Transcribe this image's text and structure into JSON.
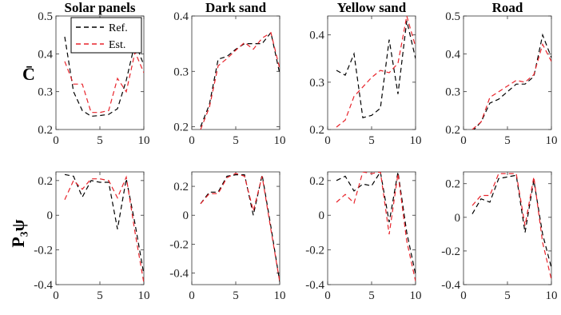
{
  "figure": {
    "row_labels": [
      "C̄",
      "P₃ψ"
    ],
    "legend": {
      "placement": "top-left of first panel",
      "entries": [
        "Ref.",
        "Est."
      ]
    },
    "colors": {
      "ref": "#000000",
      "est": "#e8242b"
    }
  },
  "chart_data": [
    {
      "type": "line",
      "title": "Solar panels",
      "xlim": [
        0,
        10
      ],
      "ylim": [
        0.2,
        0.5
      ],
      "xticks": [
        "0",
        "5",
        "10"
      ],
      "yticks": [
        "0.2",
        "0.3",
        "0.4",
        "0.5"
      ],
      "x": [
        1,
        2,
        3,
        4,
        5,
        6,
        7,
        8,
        9,
        10
      ],
      "series": [
        {
          "name": "Ref.",
          "values": [
            0.445,
            0.3,
            0.25,
            0.235,
            0.237,
            0.24,
            0.255,
            0.33,
            0.43,
            0.37
          ]
        },
        {
          "name": "Est.",
          "values": [
            0.38,
            0.32,
            0.32,
            0.245,
            0.245,
            0.25,
            0.335,
            0.3,
            0.405,
            0.35
          ]
        }
      ]
    },
    {
      "type": "line",
      "title": "Dark sand",
      "xlim": [
        0,
        10
      ],
      "ylim": [
        0.195,
        0.4
      ],
      "xticks": [
        "0",
        "5",
        "10"
      ],
      "yticks": [
        "0.2",
        "0.3",
        "0.4"
      ],
      "x": [
        1,
        2,
        3,
        4,
        5,
        6,
        7,
        8,
        9,
        10
      ],
      "series": [
        {
          "name": "Ref.",
          "values": [
            0.2,
            0.24,
            0.322,
            0.327,
            0.34,
            0.35,
            0.35,
            0.35,
            0.37,
            0.296
          ]
        },
        {
          "name": "Est.",
          "values": [
            0.195,
            0.235,
            0.31,
            0.323,
            0.338,
            0.352,
            0.34,
            0.36,
            0.37,
            0.305
          ]
        }
      ]
    },
    {
      "type": "line",
      "title": "Yellow sand",
      "xlim": [
        0,
        10
      ],
      "ylim": [
        0.2,
        0.44
      ],
      "xticks": [
        "0",
        "5",
        "10"
      ],
      "yticks": [
        "0.2",
        "0.3",
        "0.4"
      ],
      "x": [
        1,
        2,
        3,
        4,
        5,
        6,
        7,
        8,
        9,
        10
      ],
      "series": [
        {
          "name": "Ref.",
          "values": [
            0.325,
            0.315,
            0.36,
            0.225,
            0.23,
            0.245,
            0.39,
            0.275,
            0.43,
            0.35
          ]
        },
        {
          "name": "Est.",
          "values": [
            0.205,
            0.22,
            0.27,
            0.29,
            0.31,
            0.325,
            0.32,
            0.34,
            0.44,
            0.375
          ]
        }
      ]
    },
    {
      "type": "line",
      "title": "Road",
      "xlim": [
        0,
        10
      ],
      "ylim": [
        0.2,
        0.5
      ],
      "xticks": [
        "0",
        "5",
        "10"
      ],
      "yticks": [
        "0.2",
        "0.3",
        "0.4",
        "0.5"
      ],
      "x": [
        1,
        2,
        3,
        4,
        5,
        6,
        7,
        8,
        9,
        10
      ],
      "series": [
        {
          "name": "Ref.",
          "values": [
            0.195,
            0.22,
            0.27,
            0.28,
            0.3,
            0.32,
            0.32,
            0.34,
            0.45,
            0.39
          ]
        },
        {
          "name": "Est.",
          "values": [
            0.2,
            0.22,
            0.285,
            0.3,
            0.315,
            0.33,
            0.325,
            0.345,
            0.425,
            0.38
          ]
        }
      ]
    },
    {
      "type": "line",
      "title": "",
      "xlim": [
        0,
        10
      ],
      "ylim": [
        -0.4,
        0.25
      ],
      "xticks": [
        "0",
        "5",
        "10"
      ],
      "yticks": [
        "-0.4",
        "-0.2",
        "0",
        "0.2"
      ],
      "x": [
        1,
        2,
        3,
        4,
        5,
        6,
        7,
        8,
        9,
        10
      ],
      "series": [
        {
          "name": "Ref.",
          "values": [
            0.235,
            0.225,
            0.105,
            0.2,
            0.19,
            0.19,
            -0.08,
            0.21,
            -0.05,
            -0.34
          ]
        },
        {
          "name": "Est.",
          "values": [
            0.09,
            0.2,
            0.15,
            0.21,
            0.21,
            0.2,
            0.1,
            0.22,
            -0.1,
            -0.39
          ]
        }
      ]
    },
    {
      "type": "line",
      "title": "",
      "xlim": [
        0,
        10
      ],
      "ylim": [
        -0.48,
        0.3
      ],
      "xticks": [
        "0",
        "5",
        "10"
      ],
      "yticks": [
        "-0.4",
        "-0.2",
        "0",
        "0.2"
      ],
      "x": [
        1,
        2,
        3,
        4,
        5,
        6,
        7,
        8,
        9,
        10
      ],
      "series": [
        {
          "name": "Ref.",
          "values": [
            0.08,
            0.16,
            0.16,
            0.27,
            0.28,
            0.28,
            0.0,
            0.28,
            -0.08,
            -0.46
          ]
        },
        {
          "name": "Est.",
          "values": [
            0.08,
            0.15,
            0.15,
            0.26,
            0.29,
            0.27,
            0.03,
            0.27,
            -0.1,
            -0.46
          ]
        }
      ]
    },
    {
      "type": "line",
      "title": "",
      "xlim": [
        0,
        10
      ],
      "ylim": [
        -0.4,
        0.25
      ],
      "xticks": [
        "0",
        "5",
        "10"
      ],
      "yticks": [
        "-0.4",
        "-0.2",
        "0",
        "0.2"
      ],
      "x": [
        1,
        2,
        3,
        4,
        5,
        6,
        7,
        8,
        9,
        10
      ],
      "series": [
        {
          "name": "Ref.",
          "values": [
            0.2,
            0.225,
            0.14,
            0.18,
            0.17,
            0.25,
            -0.04,
            0.25,
            -0.1,
            -0.34
          ]
        },
        {
          "name": "Est.",
          "values": [
            0.075,
            0.12,
            0.07,
            0.25,
            0.24,
            0.25,
            -0.11,
            0.24,
            -0.15,
            -0.38
          ]
        }
      ]
    },
    {
      "type": "line",
      "title": "",
      "xlim": [
        0,
        10
      ],
      "ylim": [
        -0.4,
        0.27
      ],
      "xticks": [
        "0",
        "5",
        "10"
      ],
      "yticks": [
        "-0.4",
        "-0.2",
        "0",
        "0.2"
      ],
      "x": [
        1,
        2,
        3,
        4,
        5,
        6,
        7,
        8,
        9,
        10
      ],
      "series": [
        {
          "name": "Ref.",
          "values": [
            0.02,
            0.11,
            0.09,
            0.23,
            0.24,
            0.25,
            -0.09,
            0.22,
            -0.1,
            -0.3
          ]
        },
        {
          "name": "Est.",
          "values": [
            0.07,
            0.13,
            0.13,
            0.26,
            0.26,
            0.26,
            -0.05,
            0.24,
            -0.15,
            -0.37
          ]
        }
      ]
    }
  ]
}
